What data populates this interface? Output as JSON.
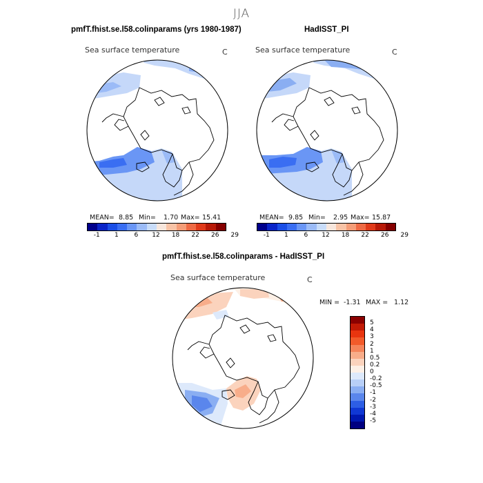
{
  "suptitle": "JJA",
  "panels": [
    {
      "title": "pmfT.fhist.se.l58.colinparams (yrs 1980-1987)",
      "variable": "Sea surface temperature",
      "units": "C",
      "stats": {
        "mean_label": "MEAN=",
        "mean": "8.85",
        "min_label": "Min=",
        "min": "1.70",
        "max_label": "Max=",
        "max": "15.41"
      }
    },
    {
      "title": "HadISST_PI",
      "variable": "Sea surface temperature",
      "units": "C",
      "stats": {
        "mean_label": "MEAN=",
        "mean": "9.85",
        "min_label": "Min=",
        "min": "2.95",
        "max_label": "Max=",
        "max": "15.87"
      }
    },
    {
      "title": "pmfT.fhist.se.l58.colinparams - HadISST_PI",
      "variable": "Sea surface temperature",
      "units": "C",
      "stats": {
        "min_label": "MIN =",
        "min": "-1.31",
        "max_label": "MAX =",
        "max": "1.12"
      }
    }
  ],
  "abs_colorbar": {
    "colors": [
      "#00008b",
      "#0a24c8",
      "#1a4ee6",
      "#3a6ef2",
      "#6a96f5",
      "#9bbbf7",
      "#c8dcf9",
      "#f7e6dc",
      "#f8c3a6",
      "#f49d78",
      "#ee6a44",
      "#e03a1a",
      "#b81a08",
      "#850000"
    ],
    "tick_labels": [
      "-1",
      "1",
      "6",
      "12",
      "18",
      "22",
      "26",
      "29"
    ]
  },
  "diff_colorbar": {
    "colors": [
      "#8b0000",
      "#c21a05",
      "#e8350f",
      "#f25a2a",
      "#f5845a",
      "#f8ad8a",
      "#fbd3bd",
      "#fdf0e6",
      "#dde9fb",
      "#b8cff7",
      "#8aaef2",
      "#5a86ec",
      "#2d5ee4",
      "#1038d4",
      "#0018b0",
      "#000080"
    ],
    "tick_labels": [
      "5",
      "4",
      "3",
      "2",
      "1",
      "0.5",
      "0.2",
      "0",
      "-0.2",
      "-0.5",
      "-1",
      "-2",
      "-3",
      "-4",
      "-5"
    ]
  }
}
